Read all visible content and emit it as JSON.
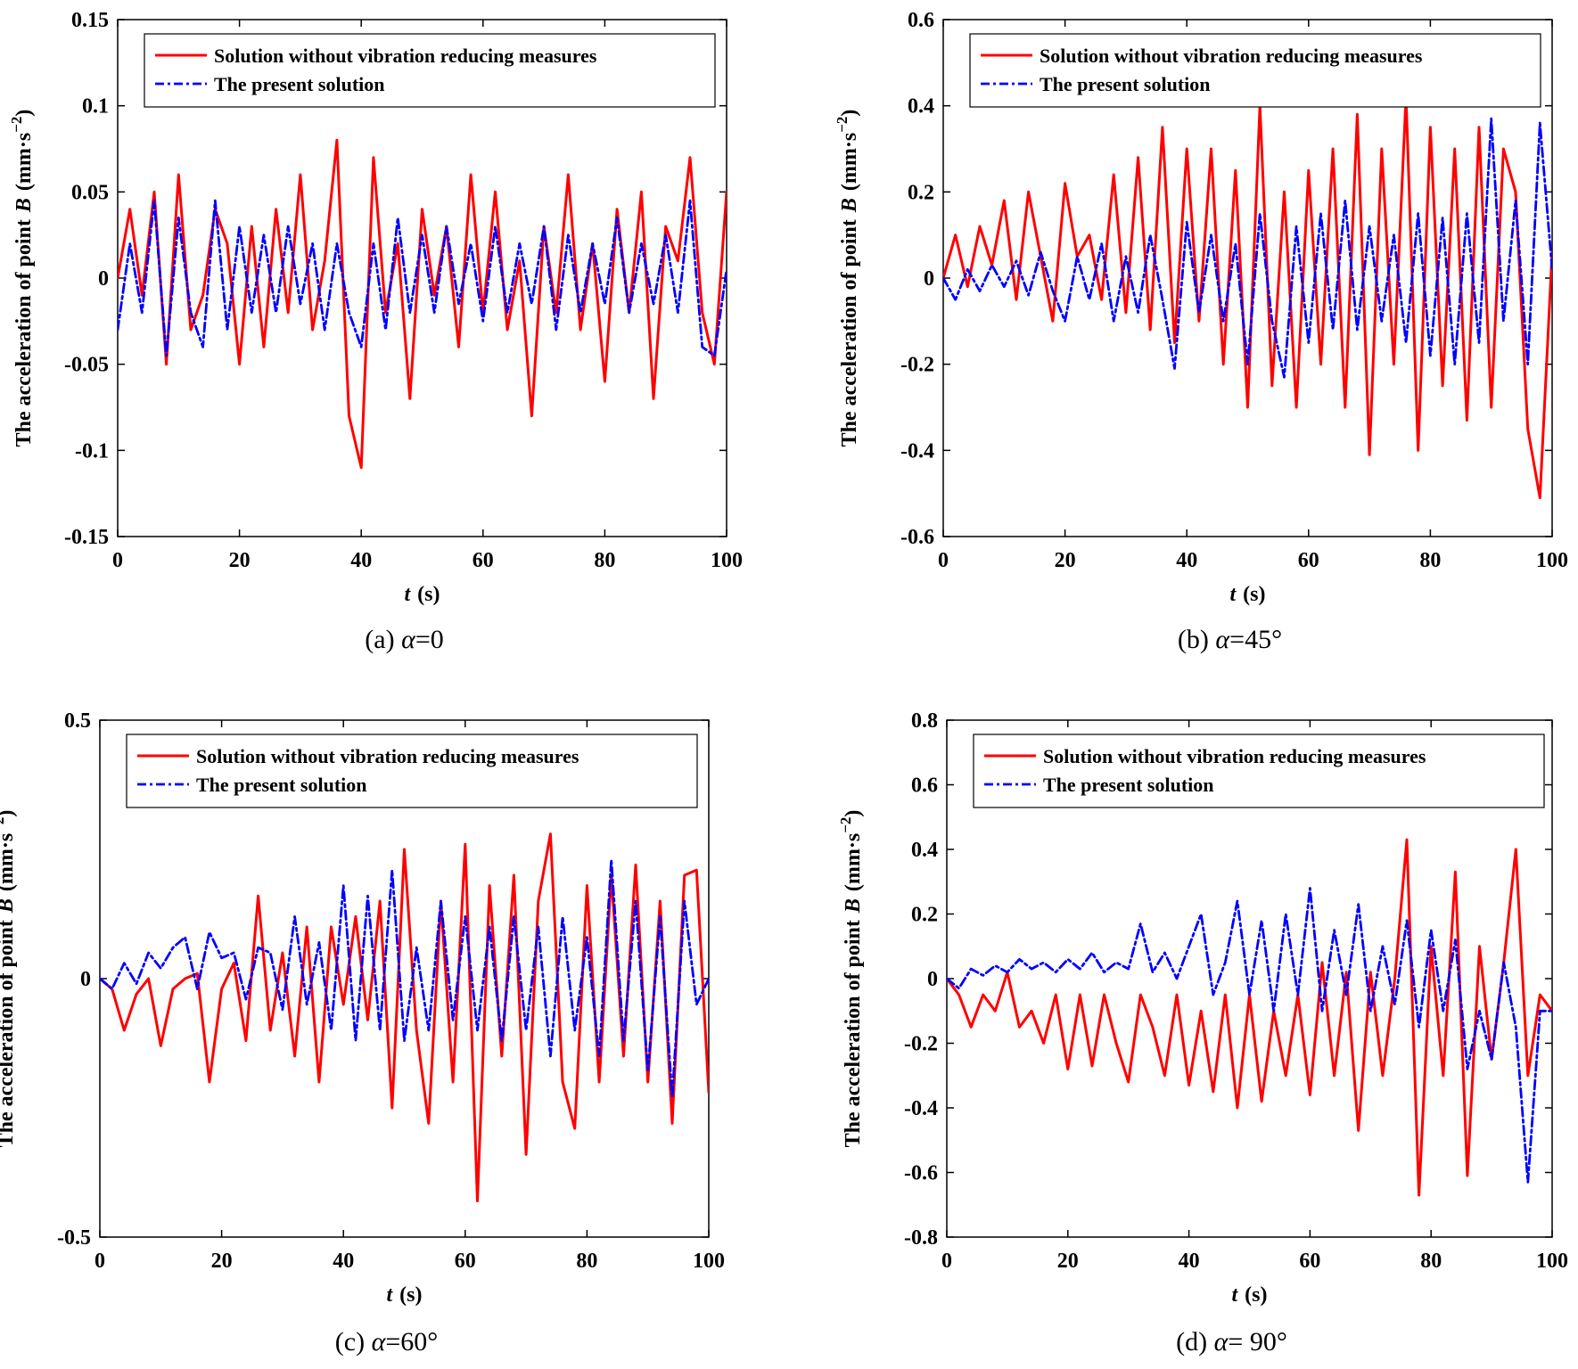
{
  "figure": {
    "x_label_var": "t",
    "x_label_unit": "(s)",
    "y_label_prefix": "The acceleration of point",
    "y_label_point": "B",
    "y_label_unit_open": "(mm·s",
    "y_label_unit_exp": "−2",
    "y_label_unit_close": ")",
    "caption_var": "α",
    "legend_labels": [
      "Solution without vibration reducing measures",
      "The present solution"
    ],
    "series_colors": [
      "#ff0000",
      "#0000ff"
    ]
  },
  "chart_data": [
    {
      "type": "line",
      "caption_prefix": "(a) ",
      "caption_value": "=0",
      "xlim": [
        0,
        100
      ],
      "ylim": [
        -0.15,
        0.15
      ],
      "x_ticks": [
        "0",
        "20",
        "40",
        "60",
        "80",
        "100"
      ],
      "y_ticks": [
        "-0.15",
        "-0.1",
        "-0.05",
        "0",
        "0.05",
        "0.1",
        "0.15"
      ],
      "series": [
        {
          "name": "Solution without vibration reducing measures",
          "style": "solid",
          "x": [
            0,
            2,
            4,
            6,
            8,
            10,
            12,
            14,
            16,
            18,
            20,
            22,
            24,
            26,
            28,
            30,
            32,
            34,
            36,
            38,
            40,
            42,
            44,
            46,
            48,
            50,
            52,
            54,
            56,
            58,
            60,
            62,
            64,
            66,
            68,
            70,
            72,
            74,
            76,
            78,
            80,
            82,
            84,
            86,
            88,
            90,
            92,
            94,
            96,
            98,
            100
          ],
          "y": [
            0,
            0.04,
            -0.01,
            0.05,
            -0.05,
            0.06,
            -0.03,
            -0.01,
            0.04,
            0.02,
            -0.05,
            0.03,
            -0.04,
            0.04,
            -0.02,
            0.06,
            -0.03,
            0.01,
            0.08,
            -0.08,
            -0.11,
            0.07,
            -0.02,
            0.02,
            -0.07,
            0.04,
            -0.01,
            0.03,
            -0.04,
            0.06,
            -0.02,
            0.05,
            -0.03,
            0.01,
            -0.08,
            0.03,
            -0.02,
            0.06,
            -0.03,
            0.02,
            -0.06,
            0.04,
            -0.02,
            0.05,
            -0.07,
            0.03,
            0.01,
            0.07,
            -0.02,
            -0.05,
            0.05
          ]
        },
        {
          "name": "The present solution",
          "style": "dashdot",
          "x": [
            0,
            2,
            4,
            6,
            8,
            10,
            12,
            14,
            16,
            18,
            20,
            22,
            24,
            26,
            28,
            30,
            32,
            34,
            36,
            38,
            40,
            42,
            44,
            46,
            48,
            50,
            52,
            54,
            56,
            58,
            60,
            62,
            64,
            66,
            68,
            70,
            72,
            74,
            76,
            78,
            80,
            82,
            84,
            86,
            88,
            90,
            92,
            94,
            96,
            98,
            100
          ],
          "y": [
            -0.03,
            0.02,
            -0.02,
            0.045,
            -0.045,
            0.035,
            -0.02,
            -0.04,
            0.045,
            -0.03,
            0.03,
            -0.02,
            0.025,
            -0.02,
            0.03,
            -0.015,
            0.02,
            -0.03,
            0.02,
            -0.02,
            -0.04,
            0.02,
            -0.03,
            0.035,
            -0.02,
            0.025,
            -0.02,
            0.03,
            -0.015,
            0.02,
            -0.025,
            0.03,
            -0.02,
            0.02,
            -0.015,
            0.03,
            -0.03,
            0.025,
            -0.02,
            0.02,
            -0.015,
            0.035,
            -0.02,
            0.02,
            -0.015,
            0.025,
            -0.02,
            0.045,
            -0.04,
            -0.045,
            0.005
          ]
        }
      ]
    },
    {
      "type": "line",
      "caption_prefix": "(b) ",
      "caption_value": "=45°",
      "xlim": [
        0,
        100
      ],
      "ylim": [
        -0.6,
        0.6
      ],
      "x_ticks": [
        "0",
        "20",
        "40",
        "60",
        "80",
        "100"
      ],
      "y_ticks": [
        "-0.6",
        "-0.4",
        "-0.2",
        "0",
        "0.2",
        "0.4",
        "0.6"
      ],
      "series": [
        {
          "name": "Solution without vibration reducing measures",
          "style": "solid",
          "x": [
            0,
            2,
            4,
            6,
            8,
            10,
            12,
            14,
            16,
            18,
            20,
            22,
            24,
            26,
            28,
            30,
            32,
            34,
            36,
            38,
            40,
            42,
            44,
            46,
            48,
            50,
            52,
            54,
            56,
            58,
            60,
            62,
            64,
            66,
            68,
            70,
            72,
            74,
            76,
            78,
            80,
            82,
            84,
            86,
            88,
            90,
            92,
            94,
            96,
            98,
            100
          ],
          "y": [
            0,
            0.1,
            -0.02,
            0.12,
            0.03,
            0.18,
            -0.05,
            0.2,
            0.05,
            -0.1,
            0.22,
            0.05,
            0.1,
            -0.05,
            0.24,
            -0.08,
            0.28,
            -0.12,
            0.35,
            -0.15,
            0.3,
            -0.1,
            0.3,
            -0.2,
            0.25,
            -0.3,
            0.4,
            -0.25,
            0.2,
            -0.3,
            0.25,
            -0.2,
            0.3,
            -0.3,
            0.38,
            -0.41,
            0.3,
            -0.2,
            0.42,
            -0.4,
            0.35,
            -0.25,
            0.3,
            -0.33,
            0.35,
            -0.3,
            0.3,
            0.2,
            -0.35,
            -0.51,
            0.06
          ]
        },
        {
          "name": "The present solution",
          "style": "dashdot",
          "x": [
            0,
            2,
            4,
            6,
            8,
            10,
            12,
            14,
            16,
            18,
            20,
            22,
            24,
            26,
            28,
            30,
            32,
            34,
            36,
            38,
            40,
            42,
            44,
            46,
            48,
            50,
            52,
            54,
            56,
            58,
            60,
            62,
            64,
            66,
            68,
            70,
            72,
            74,
            76,
            78,
            80,
            82,
            84,
            86,
            88,
            90,
            92,
            94,
            96,
            98,
            100
          ],
          "y": [
            0,
            -0.05,
            0.02,
            -0.03,
            0.03,
            -0.02,
            0.04,
            -0.04,
            0.06,
            -0.03,
            -0.1,
            0.05,
            -0.05,
            0.08,
            -0.1,
            0.05,
            -0.08,
            0.1,
            -0.05,
            -0.21,
            0.13,
            -0.08,
            0.1,
            -0.1,
            0.08,
            -0.2,
            0.15,
            -0.1,
            -0.23,
            0.12,
            -0.15,
            0.15,
            -0.12,
            0.18,
            -0.12,
            0.12,
            -0.1,
            0.1,
            -0.15,
            0.15,
            -0.18,
            0.14,
            -0.2,
            0.15,
            -0.15,
            0.37,
            -0.1,
            0.18,
            -0.2,
            0.36,
            0.02
          ]
        }
      ]
    },
    {
      "type": "line",
      "caption_prefix": "(c) ",
      "caption_value": "=60°",
      "xlim": [
        0,
        100
      ],
      "ylim": [
        -0.5,
        0.5
      ],
      "x_ticks": [
        "0",
        "20",
        "40",
        "60",
        "80",
        "100"
      ],
      "y_ticks": [
        "-0.5",
        "0",
        "0.5"
      ],
      "series": [
        {
          "name": "Solution without vibration reducing measures",
          "style": "solid",
          "x": [
            0,
            2,
            4,
            6,
            8,
            10,
            12,
            14,
            16,
            18,
            20,
            22,
            24,
            26,
            28,
            30,
            32,
            34,
            36,
            38,
            40,
            42,
            44,
            46,
            48,
            50,
            52,
            54,
            56,
            58,
            60,
            62,
            64,
            66,
            68,
            70,
            72,
            74,
            76,
            78,
            80,
            82,
            84,
            86,
            88,
            90,
            92,
            94,
            96,
            98,
            100
          ],
          "y": [
            0,
            -0.02,
            -0.1,
            -0.03,
            0,
            -0.13,
            -0.02,
            0,
            0.01,
            -0.2,
            -0.02,
            0.03,
            -0.12,
            0.16,
            -0.1,
            0.05,
            -0.15,
            0.1,
            -0.2,
            0.1,
            -0.05,
            0.12,
            -0.08,
            0.15,
            -0.25,
            0.25,
            -0.1,
            -0.28,
            0.15,
            -0.2,
            0.26,
            -0.43,
            0.18,
            -0.15,
            0.2,
            -0.34,
            0.15,
            0.28,
            -0.2,
            -0.29,
            0.18,
            -0.2,
            0.2,
            -0.15,
            0.22,
            -0.2,
            0.15,
            -0.28,
            0.2,
            0.21,
            -0.22
          ]
        },
        {
          "name": "The present solution",
          "style": "dashdot",
          "x": [
            0,
            2,
            4,
            6,
            8,
            10,
            12,
            14,
            16,
            18,
            20,
            22,
            24,
            26,
            28,
            30,
            32,
            34,
            36,
            38,
            40,
            42,
            44,
            46,
            48,
            50,
            52,
            54,
            56,
            58,
            60,
            62,
            64,
            66,
            68,
            70,
            72,
            74,
            76,
            78,
            80,
            82,
            84,
            86,
            88,
            90,
            92,
            94,
            96,
            98,
            100
          ],
          "y": [
            0,
            -0.02,
            0.03,
            -0.01,
            0.05,
            0.02,
            0.06,
            0.08,
            -0.02,
            0.09,
            0.04,
            0.05,
            -0.04,
            0.06,
            0.05,
            -0.06,
            0.12,
            -0.05,
            0.07,
            -0.1,
            0.18,
            -0.12,
            0.16,
            -0.1,
            0.21,
            -0.12,
            0.06,
            -0.1,
            0.15,
            -0.08,
            0.12,
            -0.1,
            0.1,
            -0.12,
            0.12,
            -0.1,
            0.1,
            -0.15,
            0.12,
            -0.1,
            0.08,
            -0.15,
            0.23,
            -0.12,
            0.15,
            -0.18,
            0.12,
            -0.23,
            0.15,
            -0.05,
            0
          ]
        }
      ]
    },
    {
      "type": "line",
      "caption_prefix": "(d) ",
      "caption_value": "= 90°",
      "xlim": [
        0,
        100
      ],
      "ylim": [
        -0.8,
        0.8
      ],
      "x_ticks": [
        "0",
        "20",
        "40",
        "60",
        "80",
        "100"
      ],
      "y_ticks": [
        "-0.8",
        "-0.6",
        "-0.4",
        "-0.2",
        "0",
        "0.2",
        "0.4",
        "0.6",
        "0.8"
      ],
      "series": [
        {
          "name": "Solution without vibration reducing measures",
          "style": "solid",
          "x": [
            0,
            2,
            4,
            6,
            8,
            10,
            12,
            14,
            16,
            18,
            20,
            22,
            24,
            26,
            28,
            30,
            32,
            34,
            36,
            38,
            40,
            42,
            44,
            46,
            48,
            50,
            52,
            54,
            56,
            58,
            60,
            62,
            64,
            66,
            68,
            70,
            72,
            74,
            76,
            78,
            80,
            82,
            84,
            86,
            88,
            90,
            92,
            94,
            96,
            98,
            100
          ],
          "y": [
            0,
            -0.05,
            -0.15,
            -0.05,
            -0.1,
            0.02,
            -0.15,
            -0.1,
            -0.2,
            -0.05,
            -0.28,
            -0.05,
            -0.27,
            -0.05,
            -0.2,
            -0.32,
            -0.05,
            -0.15,
            -0.3,
            -0.05,
            -0.33,
            -0.1,
            -0.35,
            -0.05,
            -0.4,
            -0.05,
            -0.38,
            -0.1,
            -0.3,
            -0.05,
            -0.36,
            0.05,
            -0.3,
            0.02,
            -0.47,
            0.02,
            -0.3,
            0,
            0.43,
            -0.67,
            0.1,
            -0.3,
            0.33,
            -0.61,
            0.1,
            -0.25,
            0.05,
            0.4,
            -0.3,
            -0.05,
            -0.1
          ]
        },
        {
          "name": "The present solution",
          "style": "dashdot",
          "x": [
            0,
            2,
            4,
            6,
            8,
            10,
            12,
            14,
            16,
            18,
            20,
            22,
            24,
            26,
            28,
            30,
            32,
            34,
            36,
            38,
            40,
            42,
            44,
            46,
            48,
            50,
            52,
            54,
            56,
            58,
            60,
            62,
            64,
            66,
            68,
            70,
            72,
            74,
            76,
            78,
            80,
            82,
            84,
            86,
            88,
            90,
            92,
            94,
            96,
            98,
            100
          ],
          "y": [
            0,
            -0.03,
            0.03,
            0.01,
            0.04,
            0.02,
            0.06,
            0.03,
            0.05,
            0.02,
            0.06,
            0.03,
            0.08,
            0.02,
            0.05,
            0.03,
            0.17,
            0.02,
            0.08,
            0,
            0.1,
            0.2,
            -0.05,
            0.05,
            0.24,
            -0.05,
            0.18,
            -0.1,
            0.2,
            -0.05,
            0.28,
            -0.1,
            0.15,
            -0.05,
            0.23,
            -0.1,
            0.1,
            -0.08,
            0.18,
            -0.15,
            0.15,
            -0.1,
            0.12,
            -0.28,
            -0.1,
            -0.25,
            0.05,
            -0.15,
            -0.63,
            -0.1,
            -0.1
          ]
        }
      ]
    }
  ]
}
